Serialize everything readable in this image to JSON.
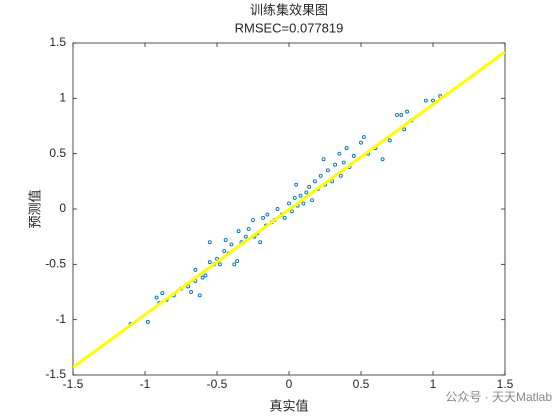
{
  "chart_data": {
    "type": "scatter",
    "title": "训练集效果图",
    "subtitle": "RMSEC=0.077819",
    "xlabel": "真实值",
    "ylabel": "预测值",
    "xlim": [
      -1.5,
      1.5
    ],
    "ylim": [
      -1.5,
      1.5
    ],
    "xticks": [
      -1.5,
      -1,
      -0.5,
      0,
      0.5,
      1,
      1.5
    ],
    "yticks": [
      -1.5,
      -1,
      -0.5,
      0,
      0.5,
      1,
      1.5
    ],
    "series": [
      {
        "type": "scatter",
        "color": "#0072bd",
        "x": [
          -1.1,
          -0.98,
          -0.92,
          -0.9,
          -0.88,
          -0.85,
          -0.8,
          -0.75,
          -0.7,
          -0.68,
          -0.65,
          -0.65,
          -0.62,
          -0.6,
          -0.58,
          -0.55,
          -0.55,
          -0.52,
          -0.5,
          -0.48,
          -0.45,
          -0.44,
          -0.42,
          -0.4,
          -0.38,
          -0.36,
          -0.35,
          -0.33,
          -0.3,
          -0.28,
          -0.25,
          -0.24,
          -0.22,
          -0.2,
          -0.18,
          -0.16,
          -0.15,
          -0.12,
          -0.1,
          -0.08,
          -0.05,
          -0.03,
          0,
          0.02,
          0.04,
          0.05,
          0.06,
          0.08,
          0.1,
          0.12,
          0.14,
          0.16,
          0.18,
          0.2,
          0.22,
          0.24,
          0.25,
          0.27,
          0.3,
          0.32,
          0.35,
          0.36,
          0.38,
          0.4,
          0.42,
          0.45,
          0.5,
          0.52,
          0.55,
          0.6,
          0.65,
          0.7,
          0.75,
          0.78,
          0.8,
          0.82,
          0.85,
          0.95,
          1.0,
          1.05
        ],
        "values": [
          -1.04,
          -1.02,
          -0.8,
          -0.85,
          -0.76,
          -0.82,
          -0.78,
          -0.72,
          -0.7,
          -0.75,
          -0.55,
          -0.65,
          -0.78,
          -0.62,
          -0.6,
          -0.3,
          -0.48,
          -0.5,
          -0.45,
          -0.5,
          -0.38,
          -0.28,
          -0.4,
          -0.32,
          -0.5,
          -0.47,
          -0.2,
          -0.3,
          -0.25,
          -0.18,
          -0.1,
          -0.25,
          -0.22,
          -0.3,
          -0.08,
          -0.15,
          -0.05,
          -0.12,
          -0.1,
          0,
          -0.05,
          -0.08,
          0.05,
          -0.02,
          0.1,
          0.22,
          0.03,
          0.12,
          0.05,
          0.15,
          0.2,
          0.08,
          0.25,
          0.18,
          0.3,
          0.45,
          0.22,
          0.35,
          0.25,
          0.4,
          0.5,
          0.3,
          0.42,
          0.55,
          0.38,
          0.48,
          0.6,
          0.65,
          0.5,
          0.55,
          0.45,
          0.62,
          0.85,
          0.85,
          0.72,
          0.88,
          0.8,
          0.98,
          0.98,
          1.02
        ]
      },
      {
        "type": "line",
        "color": "#ffff00",
        "x": [
          -1.5,
          1.5
        ],
        "values": [
          -1.43,
          1.42
        ]
      }
    ]
  },
  "watermark": "公众号 · 天天Matlab"
}
